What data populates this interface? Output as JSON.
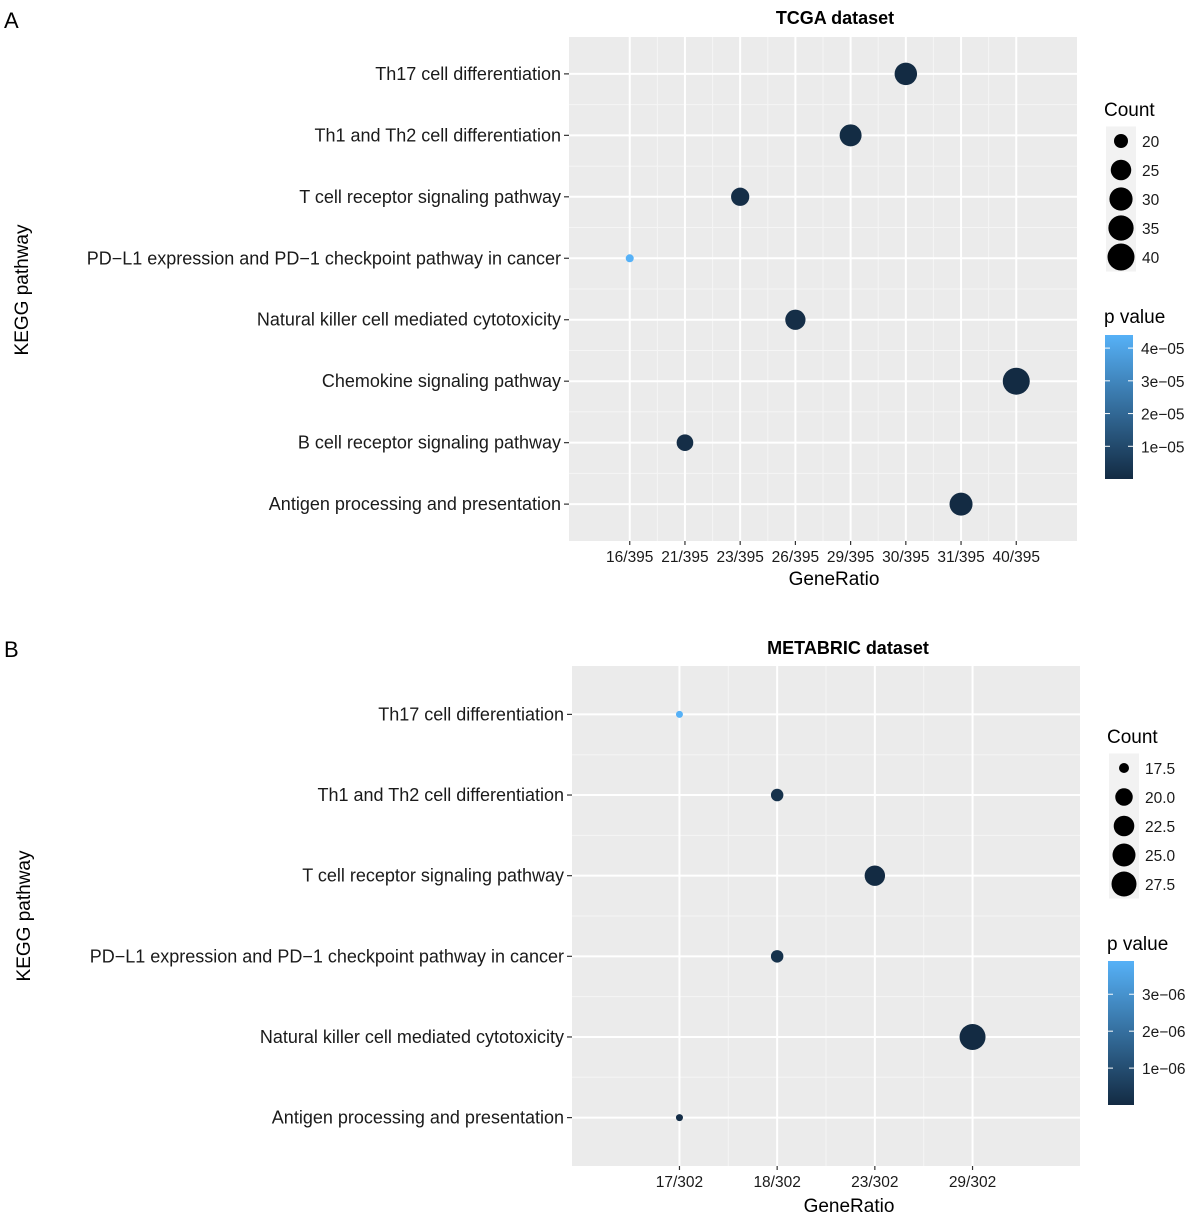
{
  "chart_data": [
    {
      "panel": "A",
      "type": "scatter",
      "title": "TCGA dataset",
      "xlabel": "GeneRatio",
      "ylabel": "KEGG pathway",
      "x_categories": [
        "16/395",
        "21/395",
        "23/395",
        "26/395",
        "29/395",
        "30/395",
        "31/395",
        "40/395"
      ],
      "y_categories": [
        "Th17 cell differentiation",
        "Th1 and Th2 cell differentiation",
        "T cell receptor signaling pathway",
        "PD−L1 expression and PD−1 checkpoint pathway in cancer",
        "Natural killer cell mediated cytotoxicity",
        "Chemokine signaling pathway",
        "B cell receptor signaling pathway",
        "Antigen processing and presentation"
      ],
      "points": [
        {
          "pathway": "Th17 cell differentiation",
          "gene_ratio": "30/395",
          "count": 30,
          "p_value": 1e-07
        },
        {
          "pathway": "Th1 and Th2 cell differentiation",
          "gene_ratio": "29/395",
          "count": 29,
          "p_value": 2e-07
        },
        {
          "pathway": "T cell receptor signaling pathway",
          "gene_ratio": "23/395",
          "count": 23,
          "p_value": 1e-06
        },
        {
          "pathway": "PD−L1 expression and PD−1 checkpoint pathway in cancer",
          "gene_ratio": "16/395",
          "count": 16,
          "p_value": 4.4e-05
        },
        {
          "pathway": "Natural killer cell mediated cytotoxicity",
          "gene_ratio": "26/395",
          "count": 26,
          "p_value": 1e-06
        },
        {
          "pathway": "Chemokine signaling pathway",
          "gene_ratio": "40/395",
          "count": 40,
          "p_value": 1e-08
        },
        {
          "pathway": "B cell receptor signaling pathway",
          "gene_ratio": "21/395",
          "count": 21,
          "p_value": 1e-06
        },
        {
          "pathway": "Antigen processing and presentation",
          "gene_ratio": "31/395",
          "count": 31,
          "p_value": 1e-08
        }
      ],
      "size_legend": {
        "title": "Count",
        "values": [
          20,
          25,
          30,
          35,
          40
        ],
        "labels": [
          "20",
          "25",
          "30",
          "35",
          "40"
        ]
      },
      "color_legend": {
        "title": "p value",
        "range": [
          1e-08,
          4.4e-05
        ],
        "ticks": [
          1e-05,
          2e-05,
          3e-05,
          4e-05
        ],
        "labels": [
          "1e−05",
          "2e−05",
          "3e−05",
          "4e−05"
        ],
        "low_color": "#132B43",
        "high_color": "#56B1F7"
      }
    },
    {
      "panel": "B",
      "type": "scatter",
      "title": "METABRIC dataset",
      "xlabel": "GeneRatio",
      "ylabel": "KEGG pathway",
      "x_categories": [
        "17/302",
        "18/302",
        "23/302",
        "29/302"
      ],
      "y_categories": [
        "Th17 cell differentiation",
        "Th1 and Th2 cell differentiation",
        "T cell receptor signaling pathway",
        "PD−L1 expression and PD−1 checkpoint pathway in cancer",
        "Natural killer cell mediated cytotoxicity",
        "Antigen processing and presentation"
      ],
      "points": [
        {
          "pathway": "Th17 cell differentiation",
          "gene_ratio": "17/302",
          "count": 17,
          "p_value": 3.9e-06
        },
        {
          "pathway": "Th1 and Th2 cell differentiation",
          "gene_ratio": "18/302",
          "count": 18,
          "p_value": 2e-07
        },
        {
          "pathway": "T cell receptor signaling pathway",
          "gene_ratio": "23/302",
          "count": 23,
          "p_value": 1e-08
        },
        {
          "pathway": "PD−L1 expression and PD−1 checkpoint pathway in cancer",
          "gene_ratio": "18/302",
          "count": 18,
          "p_value": 2e-07
        },
        {
          "pathway": "Natural killer cell mediated cytotoxicity",
          "gene_ratio": "29/302",
          "count": 29,
          "p_value": 1e-09
        },
        {
          "pathway": "Antigen processing and presentation",
          "gene_ratio": "17/302",
          "count": 17,
          "p_value": 1e-07
        }
      ],
      "size_legend": {
        "title": "Count",
        "values": [
          17.5,
          20.0,
          22.5,
          25.0,
          27.5
        ],
        "labels": [
          "17.5",
          "20.0",
          "22.5",
          "25.0",
          "27.5"
        ]
      },
      "color_legend": {
        "title": "p value",
        "range": [
          1e-09,
          3.9e-06
        ],
        "ticks": [
          1e-06,
          2e-06,
          3e-06
        ],
        "labels": [
          "1e−06",
          "2e−06",
          "3e−06"
        ],
        "low_color": "#132B43",
        "high_color": "#56B1F7"
      }
    }
  ]
}
